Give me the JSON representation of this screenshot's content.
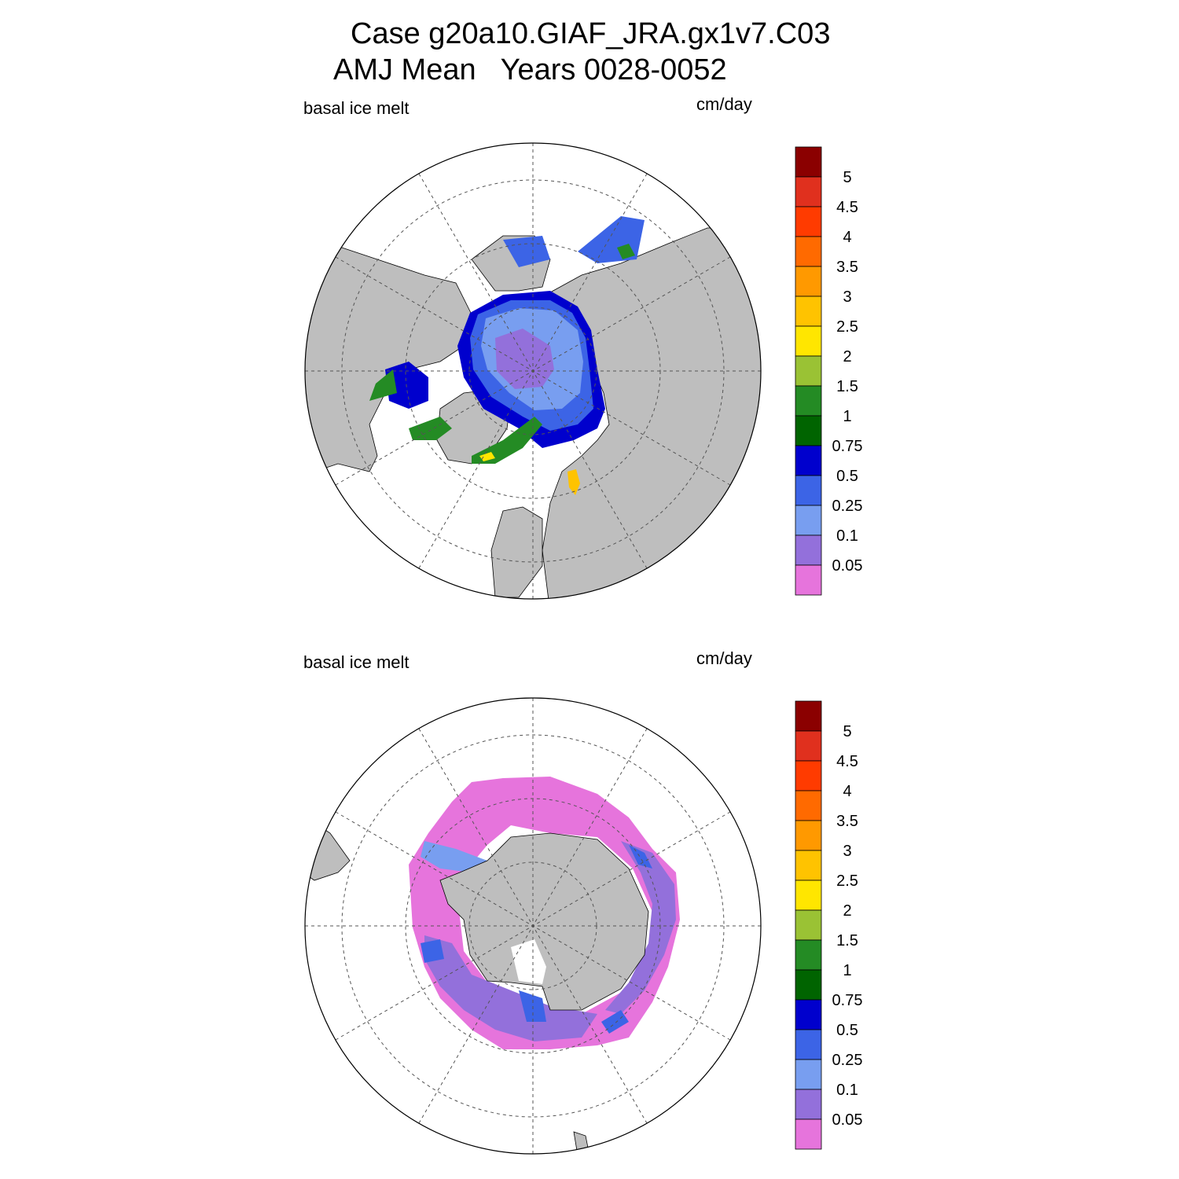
{
  "title": {
    "line1": "Case g20a10.GIAF_JRA.gx1v7.C03",
    "line2": "AMJ Mean   Years 0028-0052"
  },
  "panels": [
    {
      "name": "north",
      "hemisphere": "Arctic",
      "left_label": "basal ice melt",
      "right_label": "cm/day"
    },
    {
      "name": "south",
      "hemisphere": "Antarctic",
      "left_label": "basal ice melt",
      "right_label": "cm/day"
    }
  ],
  "colorbar": {
    "labels": [
      "5",
      "4.5",
      "4",
      "3.5",
      "3",
      "2.5",
      "2",
      "1.5",
      "1",
      "0.75",
      "0.5",
      "0.25",
      "0.1",
      "0.05"
    ],
    "colors_top_to_bottom": [
      "#8b0000",
      "#e0301e",
      "#ff3b00",
      "#ff6a00",
      "#ff9900",
      "#ffc300",
      "#ffe600",
      "#9ac234",
      "#248b24",
      "#006400",
      "#0000cd",
      "#3c64e6",
      "#789ef0",
      "#9370db",
      "#e674dc"
    ]
  },
  "colors": {
    "land": "#bebebe",
    "frame": "#000000",
    "grid": "#555555"
  }
}
